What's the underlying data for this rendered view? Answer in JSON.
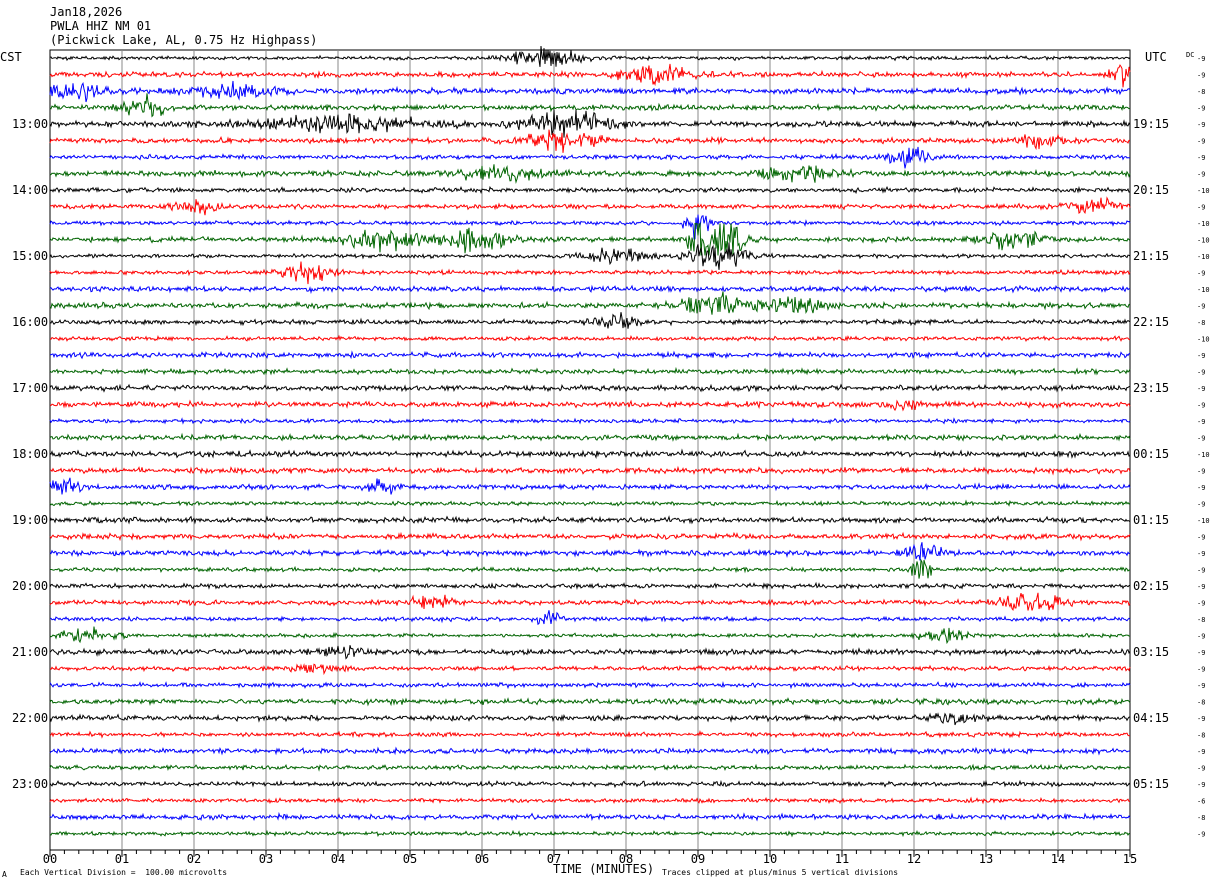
{
  "header": {
    "date": "Jan18,2026",
    "station": "PWLA HHZ NM 01",
    "location": "(Pickwick Lake, AL, 0.75 Hz Highpass)"
  },
  "left_tz": "CST",
  "right_tz": "UTC",
  "dc_label": "DC",
  "footer": {
    "corner_mark": "A",
    "scale_note": "Each Vertical Division =  100.00 microvolts",
    "clip_note": "Traces clipped at plus/minus 5 vertical divisions"
  },
  "chart_data": {
    "type": "line",
    "title": "",
    "xlabel": "TIME (MINUTES)",
    "ylabel": "",
    "xlim": [
      0,
      15
    ],
    "x_ticks": [
      "00",
      "01",
      "02",
      "03",
      "04",
      "05",
      "06",
      "07",
      "08",
      "09",
      "10",
      "11",
      "12",
      "13",
      "14",
      "15"
    ],
    "trace_count": 48,
    "trace_colors": [
      "#000000",
      "#ff0000",
      "#0000ff",
      "#006400"
    ],
    "left_hour_labels": [
      {
        "trace": 4,
        "label": "13:00"
      },
      {
        "trace": 8,
        "label": "14:00"
      },
      {
        "trace": 12,
        "label": "15:00"
      },
      {
        "trace": 16,
        "label": "16:00"
      },
      {
        "trace": 20,
        "label": "17:00"
      },
      {
        "trace": 24,
        "label": "18:00"
      },
      {
        "trace": 28,
        "label": "19:00"
      },
      {
        "trace": 32,
        "label": "20:00"
      },
      {
        "trace": 36,
        "label": "21:00"
      },
      {
        "trace": 40,
        "label": "22:00"
      },
      {
        "trace": 44,
        "label": "23:00"
      }
    ],
    "right_hour_labels": [
      {
        "trace": 4,
        "label": "19:15"
      },
      {
        "trace": 8,
        "label": "20:15"
      },
      {
        "trace": 12,
        "label": "21:15"
      },
      {
        "trace": 16,
        "label": "22:15"
      },
      {
        "trace": 20,
        "label": "23:15"
      },
      {
        "trace": 24,
        "label": "00:15"
      },
      {
        "trace": 28,
        "label": "01:15"
      },
      {
        "trace": 32,
        "label": "02:15"
      },
      {
        "trace": 36,
        "label": "03:15"
      },
      {
        "trace": 40,
        "label": "04:15"
      },
      {
        "trace": 44,
        "label": "05:15"
      }
    ],
    "dc_offsets": [
      "-9",
      "-9",
      "-8",
      "-9",
      "-9",
      "-9",
      "-9",
      "-9",
      "-10",
      "-9",
      "-10",
      "-10",
      "-10",
      "-9",
      "-10",
      "-9",
      "-8",
      "-10",
      "-9",
      "-9",
      "-9",
      "-9",
      "-9",
      "-9",
      "-10",
      "-9",
      "-9",
      "-9",
      "-10",
      "-9",
      "-9",
      "-9",
      "-9",
      "-9",
      "-8",
      "-9",
      "-9",
      "-9",
      "-9",
      "-8",
      "-9",
      "-8",
      "-9",
      "-9",
      "-9",
      "-6",
      "-8",
      "-9"
    ],
    "events": [
      {
        "trace": 0,
        "minute": 6.9,
        "amp": 6,
        "width": 0.45
      },
      {
        "trace": 1,
        "minute": 8.4,
        "amp": 5,
        "width": 0.5
      },
      {
        "trace": 1,
        "minute": 14.9,
        "amp": 5,
        "width": 0.2
      },
      {
        "trace": 2,
        "minute": 0.3,
        "amp": 5,
        "width": 0.5
      },
      {
        "trace": 2,
        "minute": 2.5,
        "amp": 4,
        "width": 0.6
      },
      {
        "trace": 3,
        "minute": 1.3,
        "amp": 5,
        "width": 0.3
      },
      {
        "trace": 4,
        "minute": 7.2,
        "amp": 7,
        "width": 0.6
      },
      {
        "trace": 4,
        "minute": 4.0,
        "amp": 4,
        "width": 1.2
      },
      {
        "trace": 5,
        "minute": 7.1,
        "amp": 5,
        "width": 0.5
      },
      {
        "trace": 5,
        "minute": 13.7,
        "amp": 4,
        "width": 0.3
      },
      {
        "trace": 6,
        "minute": 11.9,
        "amp": 5,
        "width": 0.3
      },
      {
        "trace": 7,
        "minute": 6.3,
        "amp": 5,
        "width": 0.5
      },
      {
        "trace": 7,
        "minute": 10.4,
        "amp": 5,
        "width": 0.5
      },
      {
        "trace": 9,
        "minute": 2.0,
        "amp": 4,
        "width": 0.3
      },
      {
        "trace": 9,
        "minute": 14.5,
        "amp": 4,
        "width": 0.4
      },
      {
        "trace": 10,
        "minute": 9.0,
        "amp": 10,
        "width": 0.15
      },
      {
        "trace": 11,
        "minute": 4.6,
        "amp": 6,
        "width": 0.5
      },
      {
        "trace": 11,
        "minute": 5.9,
        "amp": 7,
        "width": 0.4
      },
      {
        "trace": 11,
        "minute": 9.0,
        "amp": 16,
        "width": 0.15
      },
      {
        "trace": 11,
        "minute": 9.4,
        "amp": 16,
        "width": 0.25
      },
      {
        "trace": 11,
        "minute": 13.4,
        "amp": 5,
        "width": 0.4
      },
      {
        "trace": 12,
        "minute": 9.3,
        "amp": 9,
        "width": 0.4
      },
      {
        "trace": 12,
        "minute": 7.9,
        "amp": 4,
        "width": 0.4
      },
      {
        "trace": 13,
        "minute": 3.6,
        "amp": 5,
        "width": 0.35
      },
      {
        "trace": 15,
        "minute": 9.2,
        "amp": 7,
        "width": 0.4
      },
      {
        "trace": 15,
        "minute": 10.3,
        "amp": 5,
        "width": 0.4
      },
      {
        "trace": 16,
        "minute": 7.9,
        "amp": 4,
        "width": 0.3
      },
      {
        "trace": 21,
        "minute": 11.9,
        "amp": 4,
        "width": 0.2
      },
      {
        "trace": 26,
        "minute": 0.2,
        "amp": 5,
        "width": 0.2
      },
      {
        "trace": 26,
        "minute": 4.6,
        "amp": 4,
        "width": 0.2
      },
      {
        "trace": 30,
        "minute": 12.1,
        "amp": 5,
        "width": 0.3
      },
      {
        "trace": 31,
        "minute": 12.1,
        "amp": 8,
        "width": 0.15
      },
      {
        "trace": 33,
        "minute": 5.3,
        "amp": 4,
        "width": 0.3
      },
      {
        "trace": 33,
        "minute": 13.6,
        "amp": 5,
        "width": 0.5
      },
      {
        "trace": 34,
        "minute": 6.9,
        "amp": 4,
        "width": 0.2
      },
      {
        "trace": 35,
        "minute": 0.5,
        "amp": 4,
        "width": 0.4
      },
      {
        "trace": 35,
        "minute": 12.4,
        "amp": 5,
        "width": 0.3
      },
      {
        "trace": 36,
        "minute": 4.0,
        "amp": 3,
        "width": 0.3
      },
      {
        "trace": 37,
        "minute": 3.7,
        "amp": 3,
        "width": 0.3
      },
      {
        "trace": 40,
        "minute": 12.6,
        "amp": 3,
        "width": 0.3
      }
    ]
  }
}
